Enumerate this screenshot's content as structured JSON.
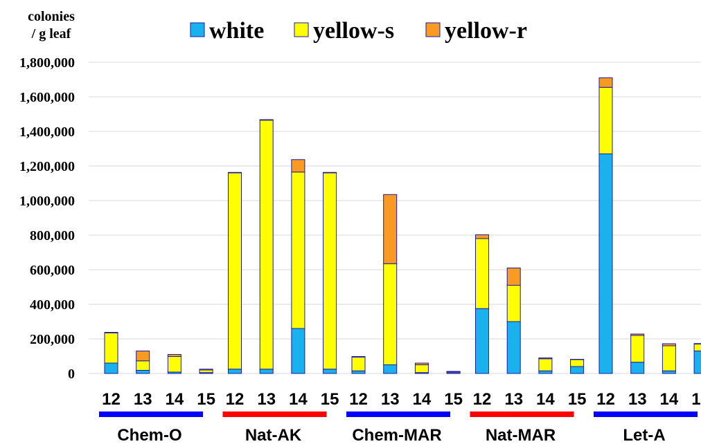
{
  "chart_data": {
    "type": "bar",
    "stacked": true,
    "ylabel": [
      "colonies",
      "/ g leaf"
    ],
    "ylim": [
      0,
      1800000
    ],
    "y_ticks": [
      "0",
      "200,000",
      "400,000",
      "600,000",
      "800,000",
      "1,000,000",
      "1,200,000",
      "1,400,000",
      "1,600,000",
      "1,800,000"
    ],
    "grid": true,
    "legend_position": "top",
    "groups": [
      {
        "name": "Chem-O",
        "underline_color": "#0000ff"
      },
      {
        "name": "Nat-AK",
        "underline_color": "#ff0000"
      },
      {
        "name": "Chem-MAR",
        "underline_color": "#0000ff"
      },
      {
        "name": "Nat-MAR",
        "underline_color": "#ff0000"
      },
      {
        "name": "Let-A",
        "underline_color": "#0000ff"
      }
    ],
    "categories_per_group": [
      "12",
      "13",
      "14",
      "15"
    ],
    "series": [
      {
        "name": "white",
        "color": "#1ab2ee",
        "values": [
          60000,
          18000,
          8000,
          5000,
          25000,
          25000,
          260000,
          25000,
          15000,
          50000,
          5000,
          5000,
          375000,
          300000,
          15000,
          40000,
          1270000,
          65000,
          15000,
          130000
        ]
      },
      {
        "name": "yellow-s",
        "color": "#ffff00",
        "values": [
          175000,
          55000,
          90000,
          15000,
          1135000,
          1440000,
          905000,
          1135000,
          80000,
          585000,
          45000,
          5000,
          405000,
          210000,
          70000,
          40000,
          385000,
          155000,
          145000,
          40000
        ]
      },
      {
        "name": "yellow-r",
        "color": "#f99a22",
        "values": [
          3000,
          57000,
          12000,
          5000,
          3000,
          3000,
          72000,
          3000,
          3000,
          400000,
          10000,
          2000,
          22000,
          100000,
          5000,
          2000,
          55000,
          8000,
          12000,
          3000
        ]
      }
    ]
  }
}
